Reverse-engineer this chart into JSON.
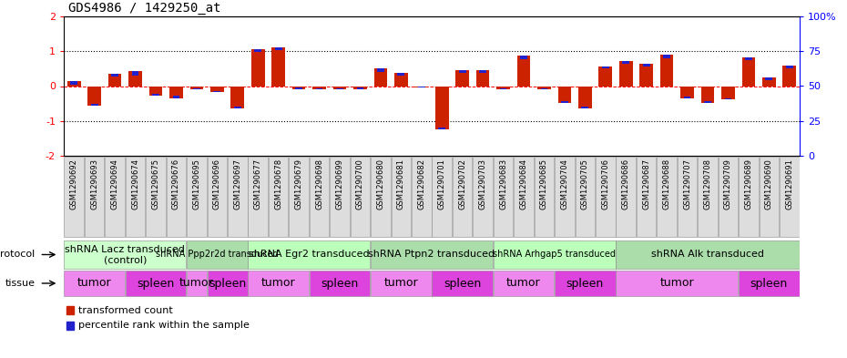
{
  "title": "GDS4986 / 1429250_at",
  "sample_ids": [
    "GSM1290692",
    "GSM1290693",
    "GSM1290694",
    "GSM1290674",
    "GSM1290675",
    "GSM1290676",
    "GSM1290695",
    "GSM1290696",
    "GSM1290697",
    "GSM1290677",
    "GSM1290678",
    "GSM1290679",
    "GSM1290698",
    "GSM1290699",
    "GSM1290700",
    "GSM1290680",
    "GSM1290681",
    "GSM1290682",
    "GSM1290701",
    "GSM1290702",
    "GSM1290703",
    "GSM1290683",
    "GSM1290684",
    "GSM1290685",
    "GSM1290704",
    "GSM1290705",
    "GSM1290706",
    "GSM1290686",
    "GSM1290687",
    "GSM1290688",
    "GSM1290707",
    "GSM1290708",
    "GSM1290709",
    "GSM1290689",
    "GSM1290690",
    "GSM1290691"
  ],
  "red_values": [
    0.15,
    -0.55,
    0.35,
    0.42,
    -0.28,
    -0.35,
    -0.08,
    -0.18,
    -0.65,
    1.05,
    1.12,
    -0.08,
    -0.08,
    -0.08,
    -0.08,
    0.5,
    0.38,
    -0.05,
    -1.25,
    0.45,
    0.45,
    -0.1,
    0.88,
    -0.1,
    -0.48,
    -0.65,
    0.55,
    0.72,
    0.65,
    0.9,
    -0.35,
    -0.48,
    -0.38,
    0.82,
    0.25,
    0.6
  ],
  "blue_offsets": [
    0.1,
    -0.04,
    0.08,
    0.12,
    0.06,
    0.08,
    -0.02,
    -0.04,
    -0.06,
    0.08,
    0.1,
    0.04,
    0.02,
    0.02,
    0.03,
    0.1,
    0.08,
    0.04,
    -0.06,
    0.06,
    0.08,
    0.04,
    0.1,
    0.04,
    0.04,
    0.06,
    0.04,
    0.08,
    0.08,
    0.1,
    0.04,
    0.06,
    0.04,
    0.08,
    0.08,
    0.1
  ],
  "protocols": [
    {
      "label": "shRNA Lacz transduced\n(control)",
      "start": 0,
      "end": 6,
      "color": "#ccffcc",
      "fontsize": 8
    },
    {
      "label": "shRNA Ppp2r2d transduced",
      "start": 6,
      "end": 9,
      "color": "#aaddaa",
      "fontsize": 7
    },
    {
      "label": "shRNA Egr2 transduced",
      "start": 9,
      "end": 15,
      "color": "#bbffbb",
      "fontsize": 8
    },
    {
      "label": "shRNA Ptpn2 transduced",
      "start": 15,
      "end": 21,
      "color": "#aaddaa",
      "fontsize": 8
    },
    {
      "label": "shRNA Arhgap5 transduced",
      "start": 21,
      "end": 27,
      "color": "#bbffbb",
      "fontsize": 7
    },
    {
      "label": "shRNA Alk transduced",
      "start": 27,
      "end": 36,
      "color": "#aaddaa",
      "fontsize": 8
    }
  ],
  "tissues": [
    {
      "label": "tumor",
      "start": 0,
      "end": 3,
      "color": "#ee88ee"
    },
    {
      "label": "spleen",
      "start": 3,
      "end": 6,
      "color": "#dd44dd"
    },
    {
      "label": "tumor",
      "start": 6,
      "end": 7,
      "color": "#ee88ee"
    },
    {
      "label": "spleen",
      "start": 7,
      "end": 9,
      "color": "#dd44dd"
    },
    {
      "label": "tumor",
      "start": 9,
      "end": 12,
      "color": "#ee88ee"
    },
    {
      "label": "spleen",
      "start": 12,
      "end": 15,
      "color": "#dd44dd"
    },
    {
      "label": "tumor",
      "start": 15,
      "end": 18,
      "color": "#ee88ee"
    },
    {
      "label": "spleen",
      "start": 18,
      "end": 21,
      "color": "#dd44dd"
    },
    {
      "label": "tumor",
      "start": 21,
      "end": 24,
      "color": "#ee88ee"
    },
    {
      "label": "spleen",
      "start": 24,
      "end": 27,
      "color": "#dd44dd"
    },
    {
      "label": "tumor",
      "start": 27,
      "end": 33,
      "color": "#ee88ee"
    },
    {
      "label": "spleen",
      "start": 33,
      "end": 36,
      "color": "#dd44dd"
    }
  ],
  "ylim": [
    -2,
    2
  ],
  "yticks_left": [
    -2,
    -1,
    0,
    1,
    2
  ],
  "yticks_right_vals": [
    0,
    25,
    50,
    75,
    100
  ],
  "yticks_right_labels": [
    "0",
    "25",
    "50",
    "75",
    "100%"
  ],
  "bar_color_red": "#cc2200",
  "bar_color_blue": "#2222cc",
  "label_box_color": "#dddddd",
  "title_fontsize": 10,
  "tick_fontsize": 6.5,
  "sample_label_fontsize": 6,
  "tissue_fontsize": 9,
  "legend_fontsize": 8
}
